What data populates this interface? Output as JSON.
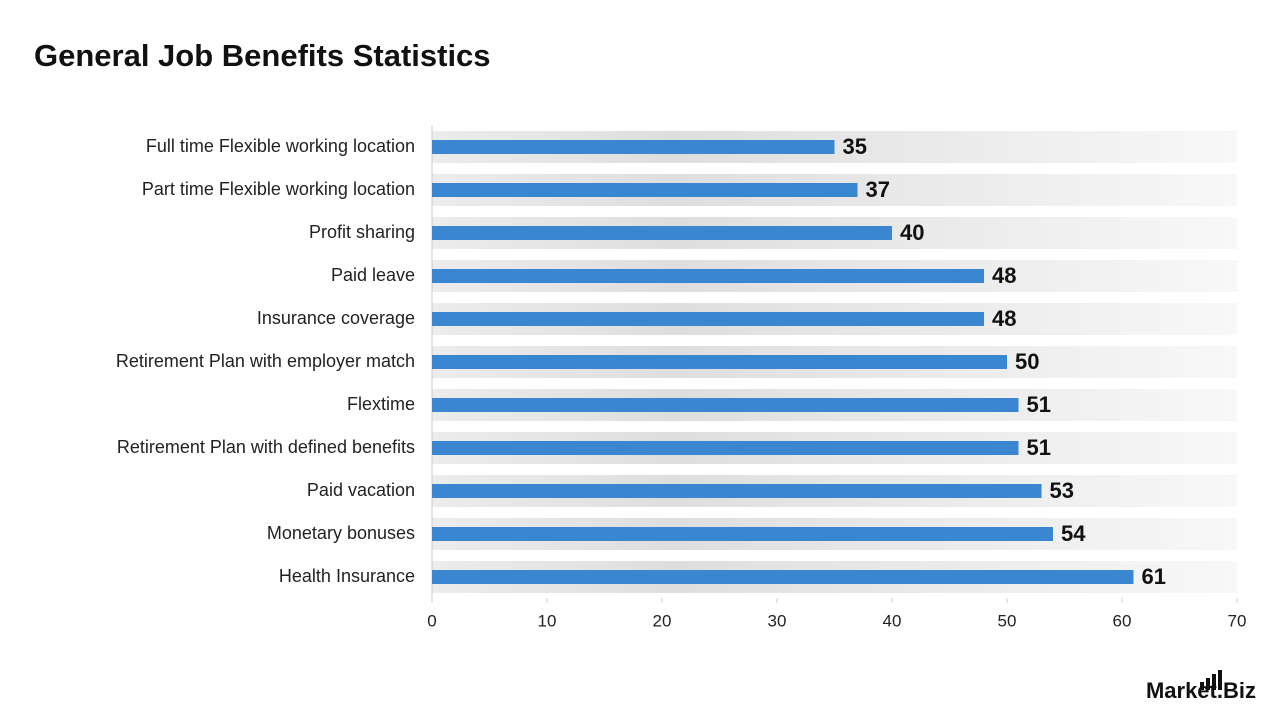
{
  "chart_data": {
    "type": "bar",
    "orientation": "horizontal",
    "title": "General Job Benefits Statistics",
    "categories": [
      "Full time Flexible working location",
      "Part time Flexible working location",
      "Profit sharing",
      "Paid leave",
      "Insurance coverage",
      "Retirement Plan with employer match",
      "Flextime",
      "Retirement Plan with defined benefits",
      "Paid vacation",
      "Monetary bonuses",
      "Health Insurance"
    ],
    "values": [
      35,
      37,
      40,
      48,
      48,
      50,
      51,
      51,
      53,
      54,
      61
    ],
    "color": "#3a86d0",
    "xlim": [
      0,
      70
    ],
    "xticks": [
      0,
      10,
      20,
      30,
      40,
      50,
      60,
      70
    ]
  },
  "logo": "Market.Biz"
}
